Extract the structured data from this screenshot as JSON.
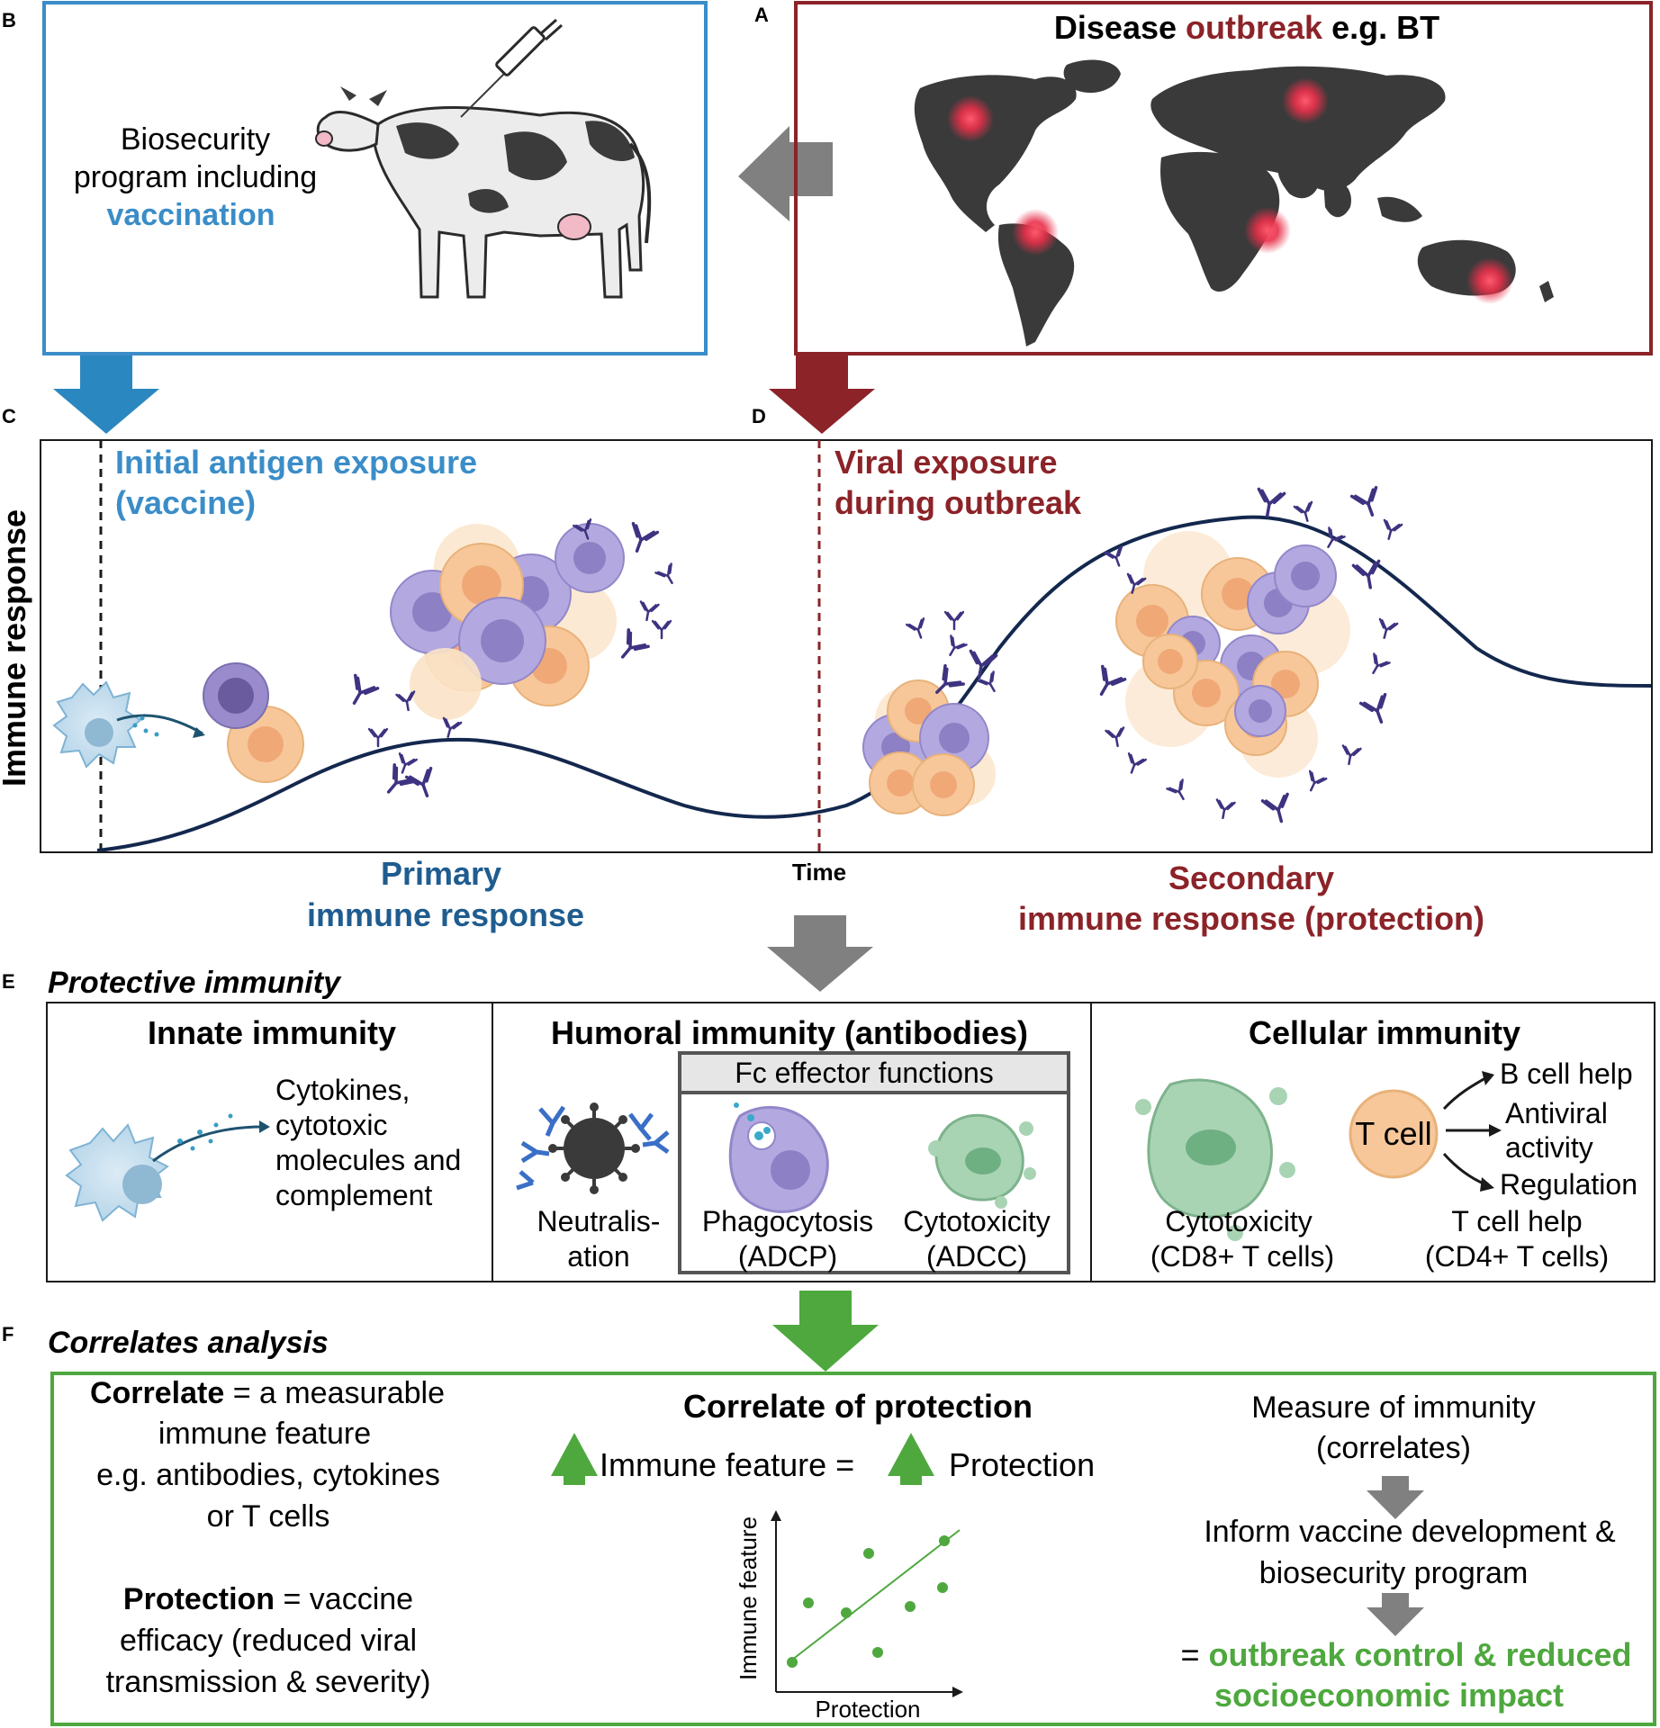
{
  "colors": {
    "blue": "#3a8dc8",
    "dark_blue": "#1f5c8f",
    "dark_red": "#8b2328",
    "green": "#4ea83e",
    "gray_arrow": "#808080",
    "navy_curve": "#14284e",
    "lilac": "#a39bd6",
    "peach": "#f5c494",
    "cell_green": "#a9d4b4",
    "map_fill": "#3a3a3a",
    "hotspot": "#e8304a"
  },
  "panel_letters": {
    "a": "A",
    "b": "B",
    "c": "C",
    "d": "D",
    "e": "E",
    "f": "F"
  },
  "panel_a": {
    "title_1": "Disease ",
    "title_2": "outbreak",
    "title_3": " e.g. BT"
  },
  "panel_b": {
    "line1": "Biosecurity",
    "line2": "program including",
    "line3": "vaccination"
  },
  "panel_cd": {
    "y_axis_label": "Immune response",
    "c_title_1": "Initial antigen exposure",
    "c_title_2": "(vaccine)",
    "d_title_1": "Viral exposure",
    "d_title_2": "during outbreak",
    "x_axis_label": "Time",
    "primary_1": "Primary",
    "primary_2": "immune response",
    "secondary_1": "Secondary",
    "secondary_2": "immune response (protection)"
  },
  "panel_e": {
    "heading": "Protective immunity",
    "innate": {
      "title": "Innate immunity",
      "l1": "Cytokines,",
      "l2": "cytotoxic",
      "l3": "molecules and",
      "l4": "complement"
    },
    "humoral": {
      "title": "Humoral immunity (antibodies)",
      "fc_title": "Fc effector functions",
      "neut_1": "Neutralis-",
      "neut_2": "ation",
      "phago_1": "Phagocytosis",
      "phago_2": "(ADCP)",
      "cyto_1": "Cytotoxicity",
      "cyto_2": "(ADCC)"
    },
    "cellular": {
      "title": "Cellular immunity",
      "tcell": "T cell",
      "bhelp": "B cell help",
      "antiviral_1": "Antiviral",
      "antiviral_2": "activity",
      "regulation": "Regulation",
      "cyto_1": "Cytotoxicity",
      "cyto_2": "(CD8+ T cells)",
      "help_1": "T cell help",
      "help_2": "(CD4+ T cells)"
    }
  },
  "panel_f": {
    "heading": "Correlates analysis",
    "corr_1b": "Correlate",
    "corr_1": " = a measurable",
    "corr_2": "immune feature",
    "corr_3": "e.g. antibodies, cytokines",
    "corr_4": "or T cells",
    "prot_1b": "Protection",
    "prot_1": " = vaccine",
    "prot_2": "efficacy (reduced viral",
    "prot_3": "transmission & severity)",
    "cop_title": "Correlate of protection",
    "cop_eq_1": "Immune feature =",
    "cop_eq_2": "Protection",
    "plot_y": "Immune feature",
    "plot_x": "Protection",
    "measure_1": "Measure of immunity",
    "measure_2": "(correlates)",
    "inform_1": "Inform vaccine development &",
    "inform_2": "biosecurity program",
    "outcome_eq": "= ",
    "outcome_1": "outbreak control & reduced",
    "outcome_2": "socioeconomic impact"
  }
}
